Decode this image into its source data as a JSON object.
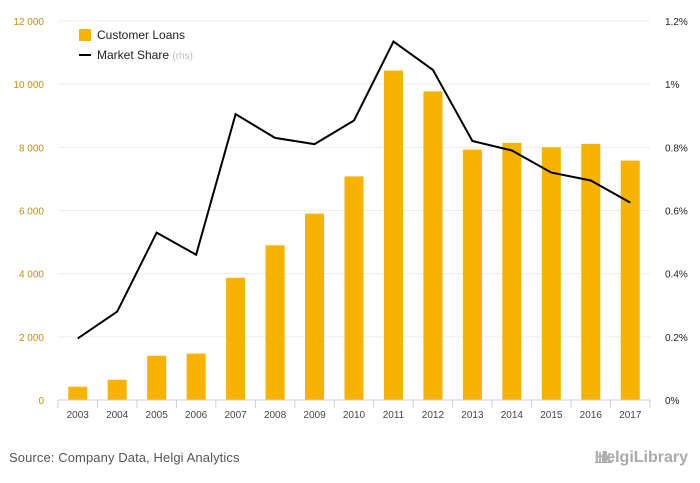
{
  "chart_data": {
    "type": "bar",
    "categories": [
      "2003",
      "2004",
      "2005",
      "2006",
      "2007",
      "2008",
      "2009",
      "2010",
      "2011",
      "2012",
      "2013",
      "2014",
      "2015",
      "2016",
      "2017"
    ],
    "series": [
      {
        "name": "Customer Loans",
        "type": "bar",
        "axis": "left",
        "color": "#f8b200",
        "values": [
          420,
          640,
          1400,
          1470,
          3870,
          4900,
          5900,
          7080,
          10430,
          9770,
          7930,
          8140,
          8000,
          8110,
          7580
        ]
      },
      {
        "name": "Market Share",
        "type": "line",
        "axis": "right",
        "color": "#000000",
        "values": [
          0.195,
          0.28,
          0.53,
          0.46,
          0.905,
          0.83,
          0.81,
          0.885,
          1.135,
          1.045,
          0.82,
          0.79,
          0.72,
          0.695,
          0.625
        ]
      }
    ],
    "legend_suffix": "(rhs)",
    "ylim": [
      0,
      12000
    ],
    "yticks": [
      "0",
      "2 000",
      "4 000",
      "6 000",
      "8 000",
      "10 000",
      "12 000"
    ],
    "y2lim": [
      0,
      1.2
    ],
    "y2ticks": [
      "0%",
      "0.2%",
      "0.4%",
      "0.6%",
      "0.8%",
      "1%",
      "1.2%"
    ],
    "legend_position": "top-left",
    "grid": true
  },
  "footer": {
    "source": "Source: Company Data, Helgi Analytics",
    "brand": "HelgiLibrary"
  }
}
